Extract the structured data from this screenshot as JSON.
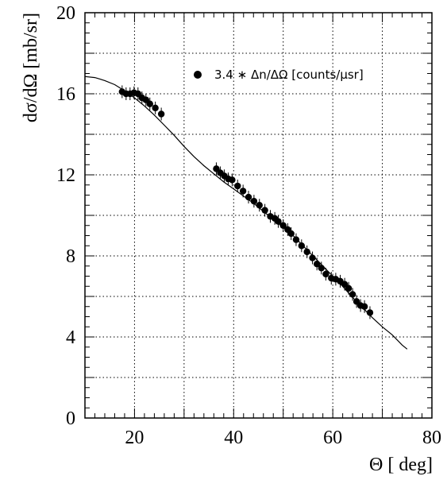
{
  "chart_data": {
    "type": "scatter",
    "xlabel": "Θ [ deg]",
    "ylabel": "dσ/dΩ [mb/sr]",
    "xlim": [
      10,
      80
    ],
    "ylim": [
      0,
      20
    ],
    "xticks": [
      "20",
      "40",
      "60",
      "80"
    ],
    "yticks": [
      "0",
      "4",
      "8",
      "12",
      "16",
      "20"
    ],
    "grid": true,
    "legend_position": "top-right",
    "series": [
      {
        "name": "3.4 ∗ Δn/ΔΩ [counts/μsr]",
        "marker": "filled-circle",
        "points": [
          [
            17.5,
            16.1
          ],
          [
            18.3,
            16.0
          ],
          [
            19.1,
            16.0
          ],
          [
            19.9,
            16.05
          ],
          [
            20.7,
            16.0
          ],
          [
            21.5,
            15.8
          ],
          [
            22.3,
            15.7
          ],
          [
            23.1,
            15.5
          ],
          [
            24.2,
            15.3
          ],
          [
            25.4,
            15.0
          ],
          [
            36.5,
            12.3
          ],
          [
            37.3,
            12.1
          ],
          [
            38.1,
            11.95
          ],
          [
            38.9,
            11.8
          ],
          [
            39.7,
            11.75
          ],
          [
            40.8,
            11.45
          ],
          [
            41.9,
            11.2
          ],
          [
            43.0,
            10.9
          ],
          [
            44.1,
            10.7
          ],
          [
            45.2,
            10.5
          ],
          [
            46.3,
            10.25
          ],
          [
            47.4,
            9.95
          ],
          [
            48.3,
            9.85
          ],
          [
            49.0,
            9.7
          ],
          [
            50.0,
            9.5
          ],
          [
            50.9,
            9.3
          ],
          [
            51.6,
            9.1
          ],
          [
            52.6,
            8.8
          ],
          [
            53.7,
            8.5
          ],
          [
            54.8,
            8.2
          ],
          [
            55.9,
            7.9
          ],
          [
            56.8,
            7.6
          ],
          [
            57.7,
            7.4
          ],
          [
            58.6,
            7.1
          ],
          [
            59.7,
            6.9
          ],
          [
            60.6,
            6.85
          ],
          [
            61.5,
            6.75
          ],
          [
            62.4,
            6.6
          ],
          [
            63.2,
            6.4
          ],
          [
            64.0,
            6.1
          ],
          [
            64.8,
            5.75
          ],
          [
            65.6,
            5.55
          ],
          [
            66.4,
            5.5
          ],
          [
            67.5,
            5.2
          ]
        ]
      },
      {
        "name": "",
        "type": "line",
        "points": [
          [
            10,
            16.85
          ],
          [
            12,
            16.8
          ],
          [
            14,
            16.65
          ],
          [
            16,
            16.45
          ],
          [
            18,
            16.15
          ],
          [
            20,
            15.8
          ],
          [
            22,
            15.4
          ],
          [
            24,
            14.95
          ],
          [
            26,
            14.45
          ],
          [
            28,
            13.95
          ],
          [
            30,
            13.4
          ],
          [
            32,
            12.9
          ],
          [
            34,
            12.45
          ],
          [
            36,
            12.05
          ],
          [
            38,
            11.65
          ],
          [
            40,
            11.3
          ],
          [
            42,
            10.95
          ],
          [
            44,
            10.6
          ],
          [
            46,
            10.2
          ],
          [
            48,
            9.8
          ],
          [
            50,
            9.4
          ],
          [
            52,
            9.0
          ],
          [
            54,
            8.5
          ],
          [
            56,
            8.0
          ],
          [
            58,
            7.5
          ],
          [
            60,
            7.0
          ],
          [
            62,
            6.5
          ],
          [
            64,
            5.95
          ],
          [
            66,
            5.45
          ],
          [
            68,
            4.95
          ],
          [
            70,
            4.5
          ],
          [
            72,
            4.1
          ],
          [
            74,
            3.6
          ],
          [
            75,
            3.4
          ]
        ]
      }
    ]
  }
}
